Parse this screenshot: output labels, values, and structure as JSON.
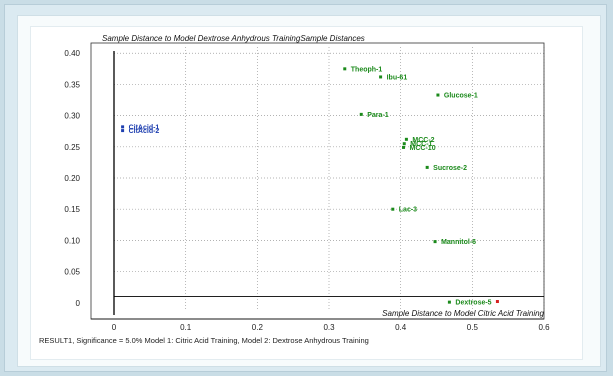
{
  "chart_data": {
    "type": "scatter",
    "title": "Sample Distance to Model Dextrose Anhydrous TrainingSample Distances",
    "xlabel": "Sample Distance to Model Citric Acid Training",
    "ylabel": "",
    "footer": "RESULT1, Significance = 5.0% Model 1: Citric Acid Training, Model 2: Dextrose Anhydrous Training",
    "xlim": [
      0,
      0.6
    ],
    "ylim": [
      -0.01,
      0.41
    ],
    "x_ticks": [
      "0",
      "0.1",
      "0.2",
      "0.3",
      "0.4",
      "0.5",
      "0.6"
    ],
    "x_tick_values": [
      0,
      0.1,
      0.2,
      0.3,
      0.4,
      0.5,
      0.6
    ],
    "y_ticks": [
      "0",
      "0.05",
      "0.10",
      "0.15",
      "0.20",
      "0.25",
      "0.30",
      "0.35",
      "0.40"
    ],
    "y_tick_values": [
      0,
      0.05,
      0.1,
      0.15,
      0.2,
      0.25,
      0.3,
      0.35,
      0.4
    ],
    "grid": true,
    "threshold_y": 0.01,
    "series": [
      {
        "color": "#1b8a1b",
        "points": [
          {
            "label": "Theoph-1",
            "x": 0.322,
            "y": 0.375
          },
          {
            "label": "Ibu-61",
            "x": 0.372,
            "y": 0.362
          },
          {
            "label": "Glucose-1",
            "x": 0.452,
            "y": 0.333
          },
          {
            "label": "Para-1",
            "x": 0.345,
            "y": 0.302
          },
          {
            "label": "MCC-2",
            "x": 0.408,
            "y": 0.262
          },
          {
            "label": "MCC-1",
            "x": 0.405,
            "y": 0.255
          },
          {
            "label": "MCC-10",
            "x": 0.404,
            "y": 0.249
          },
          {
            "label": "Sucrose-2",
            "x": 0.437,
            "y": 0.217
          },
          {
            "label": "Lac-3",
            "x": 0.389,
            "y": 0.15
          },
          {
            "label": "Mannitol-6",
            "x": 0.448,
            "y": 0.098
          },
          {
            "label": "Dextrose-5",
            "x": 0.468,
            "y": 0.001
          }
        ]
      },
      {
        "color": "#1e3fb0",
        "points": [
          {
            "label": "CitAcid-1",
            "x": 0.012,
            "y": 0.282
          },
          {
            "label": "CitAcid-2",
            "x": 0.012,
            "y": 0.276
          }
        ]
      },
      {
        "color": "#d62020",
        "points": [
          {
            "label": "",
            "x": 0.535,
            "y": 0.002
          }
        ]
      }
    ]
  }
}
